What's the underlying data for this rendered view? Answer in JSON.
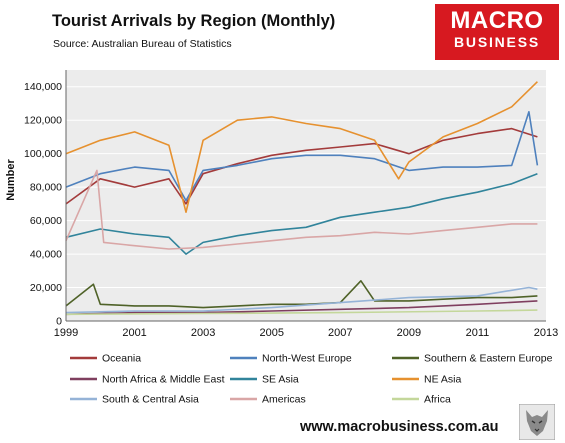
{
  "header": {
    "title": "Tourist Arrivals by Region (Monthly)",
    "subtitle": "Source: Australian Bureau of Statistics"
  },
  "logo": {
    "line1": "MACRO",
    "line2": "BUSINESS",
    "color": "#d71920"
  },
  "footer": {
    "url": "www.macrobusiness.com.au",
    "icon": "wolf-icon"
  },
  "chart_data": {
    "type": "line",
    "title": "Tourist Arrivals by Region (Monthly)",
    "ylabel": "Number",
    "xlabel": "",
    "xlim": [
      1999,
      2013
    ],
    "ylim": [
      0,
      150000
    ],
    "x_ticks": [
      "1999",
      "2001",
      "2003",
      "2005",
      "2007",
      "2009",
      "2011",
      "2013"
    ],
    "y_ticks": [
      "0",
      "20,000",
      "40,000",
      "60,000",
      "80,000",
      "100,000",
      "120,000",
      "140,000"
    ],
    "grid": true,
    "legend_position": "bottom",
    "series": [
      {
        "name": "Oceania",
        "color": "#a33b3b",
        "x": [
          1999,
          2000,
          2001,
          2002,
          2002.5,
          2003,
          2004,
          2005,
          2006,
          2007,
          2008,
          2009,
          2010,
          2011,
          2012,
          2012.75
        ],
        "y": [
          70000,
          85000,
          80000,
          85000,
          70000,
          88000,
          94000,
          99000,
          102000,
          104000,
          106000,
          100000,
          108000,
          112000,
          115000,
          110000
        ]
      },
      {
        "name": "North-West Europe",
        "color": "#4f81bd",
        "x": [
          1999,
          2000,
          2001,
          2002,
          2002.5,
          2003,
          2004,
          2005,
          2006,
          2007,
          2008,
          2009,
          2010,
          2011,
          2012,
          2012.5,
          2012.75
        ],
        "y": [
          80000,
          88000,
          92000,
          90000,
          72000,
          90000,
          93000,
          97000,
          99000,
          99000,
          97000,
          90000,
          92000,
          92000,
          93000,
          125000,
          93000
        ]
      },
      {
        "name": "Southern & Eastern Europe",
        "color": "#4f6228",
        "x": [
          1999,
          1999.8,
          2000,
          2001,
          2002,
          2003,
          2004,
          2005,
          2006,
          2007,
          2007.6,
          2008,
          2009,
          2010,
          2011,
          2012,
          2012.75
        ],
        "y": [
          9000,
          22000,
          10000,
          9000,
          9000,
          8000,
          9000,
          10000,
          10000,
          11000,
          24000,
          12000,
          12000,
          13000,
          14000,
          14000,
          15000
        ]
      },
      {
        "name": "North Africa & Middle East",
        "color": "#7f3f5f",
        "x": [
          1999,
          2001,
          2003,
          2005,
          2007,
          2009,
          2011,
          2012.75
        ],
        "y": [
          4000,
          5000,
          5000,
          6000,
          7000,
          8000,
          10000,
          12000
        ]
      },
      {
        "name": "SE Asia",
        "color": "#31849b",
        "x": [
          1999,
          2000,
          2001,
          2002,
          2002.5,
          2003,
          2004,
          2005,
          2006,
          2007,
          2008,
          2009,
          2010,
          2011,
          2012,
          2012.75
        ],
        "y": [
          50000,
          55000,
          52000,
          50000,
          40000,
          47000,
          51000,
          54000,
          56000,
          62000,
          65000,
          68000,
          73000,
          77000,
          82000,
          88000
        ]
      },
      {
        "name": "NE Asia",
        "color": "#e6912f",
        "x": [
          1999,
          2000,
          2001,
          2002,
          2002.5,
          2003,
          2004,
          2005,
          2006,
          2007,
          2008,
          2008.7,
          2009,
          2010,
          2011,
          2012,
          2012.75
        ],
        "y": [
          100000,
          108000,
          113000,
          105000,
          65000,
          108000,
          120000,
          122000,
          118000,
          115000,
          108000,
          85000,
          95000,
          110000,
          118000,
          128000,
          143000
        ]
      },
      {
        "name": "South & Central Asia",
        "color": "#95b3d7",
        "x": [
          1999,
          2001,
          2003,
          2005,
          2007,
          2009,
          2011,
          2012.5,
          2012.75
        ],
        "y": [
          5000,
          6000,
          6000,
          8000,
          11000,
          14000,
          15000,
          20000,
          19000
        ]
      },
      {
        "name": "Americas",
        "color": "#d9a6a6",
        "x": [
          1999,
          1999.9,
          2000.1,
          2001,
          2002,
          2003,
          2004,
          2005,
          2006,
          2007,
          2008,
          2009,
          2010,
          2011,
          2012,
          2012.75
        ],
        "y": [
          48000,
          90000,
          47000,
          45000,
          43000,
          44000,
          46000,
          48000,
          50000,
          51000,
          53000,
          52000,
          54000,
          56000,
          58000,
          58000
        ]
      },
      {
        "name": "Africa",
        "color": "#c4d79b",
        "x": [
          1999,
          2003,
          2007,
          2011,
          2012.75
        ],
        "y": [
          4000,
          4500,
          5000,
          6000,
          6500
        ]
      }
    ]
  }
}
